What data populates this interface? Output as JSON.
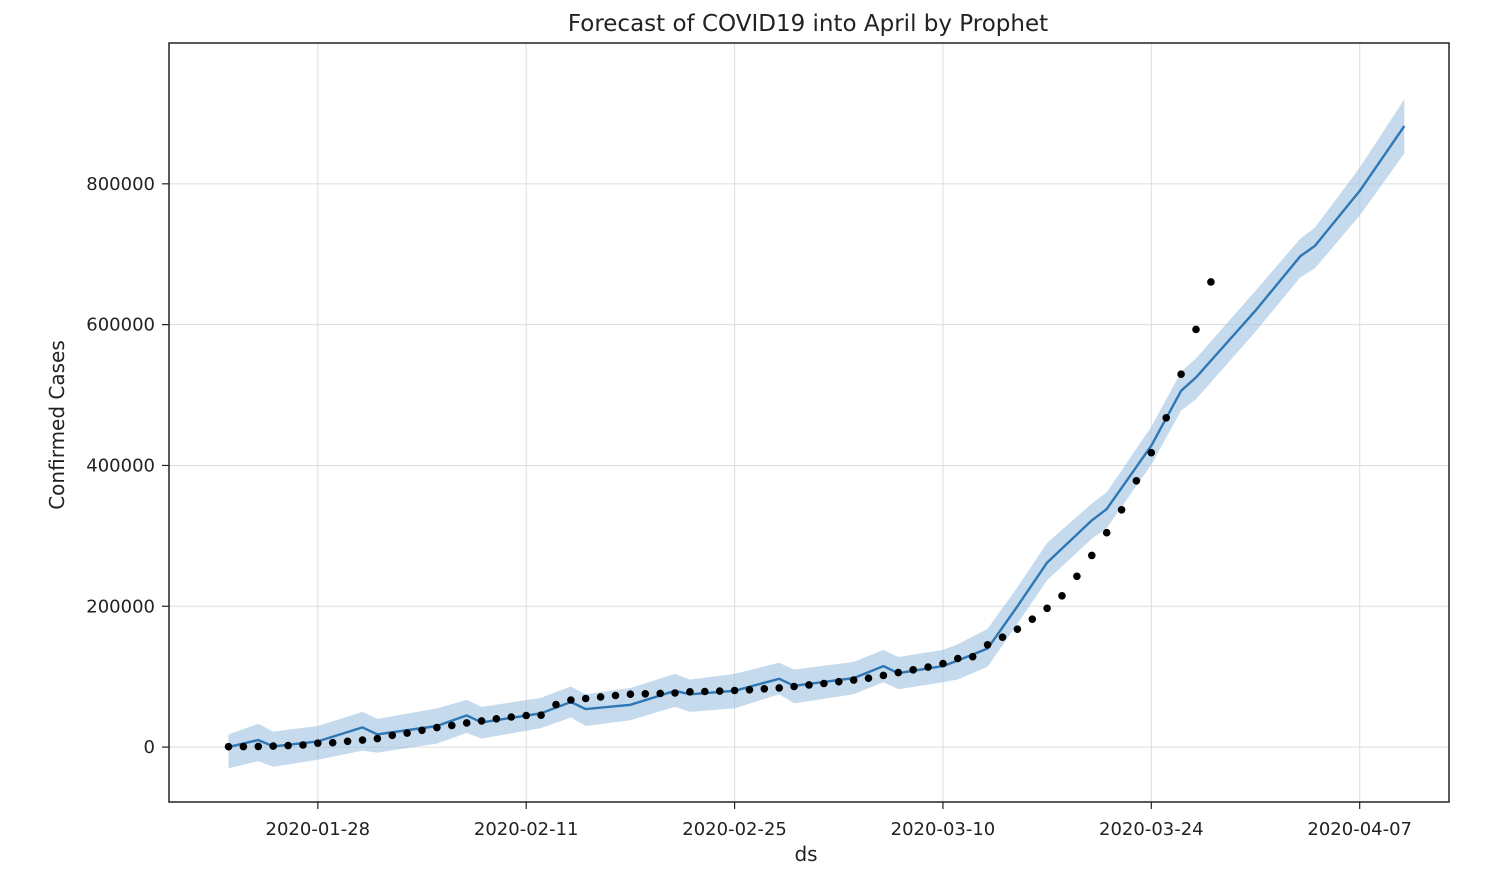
{
  "chart_data": {
    "type": "line",
    "title": "Forecast of COVID19 into April by Prophet",
    "xlabel": "ds",
    "ylabel": "Confirmed Cases",
    "x_ticks": [
      "2020-01-28",
      "2020-02-11",
      "2020-02-25",
      "2020-03-10",
      "2020-03-24",
      "2020-04-07"
    ],
    "y_ticks": [
      0,
      200000,
      400000,
      600000,
      800000
    ],
    "y_tick_labels": [
      "0",
      "200000",
      "400000",
      "600000",
      "800000"
    ],
    "xlim": [
      "2020-01-18",
      "2020-04-13"
    ],
    "ylim": [
      -78000,
      1000000
    ],
    "grid": true,
    "colors": {
      "forecast": "#2f76b5",
      "band": "#9fc3e1",
      "actual": "#000000",
      "grid": "#dddddd",
      "frame": "#222222"
    },
    "series": [
      {
        "kind": "points",
        "x": [
          "2020-01-22",
          "2020-01-23",
          "2020-01-24",
          "2020-01-25",
          "2020-01-26",
          "2020-01-27",
          "2020-01-28",
          "2020-01-29",
          "2020-01-30",
          "2020-01-31",
          "2020-02-01",
          "2020-02-02",
          "2020-02-03",
          "2020-02-04",
          "2020-02-05",
          "2020-02-06",
          "2020-02-07",
          "2020-02-08",
          "2020-02-09",
          "2020-02-10",
          "2020-02-11",
          "2020-02-12",
          "2020-02-13",
          "2020-02-14",
          "2020-02-15",
          "2020-02-16",
          "2020-02-17",
          "2020-02-18",
          "2020-02-19",
          "2020-02-20",
          "2020-02-21",
          "2020-02-22",
          "2020-02-23",
          "2020-02-24",
          "2020-02-25",
          "2020-02-26",
          "2020-02-27",
          "2020-02-28",
          "2020-02-29",
          "2020-03-01",
          "2020-03-02",
          "2020-03-03",
          "2020-03-04",
          "2020-03-05",
          "2020-03-06",
          "2020-03-07",
          "2020-03-08",
          "2020-03-09",
          "2020-03-10",
          "2020-03-11",
          "2020-03-12",
          "2020-03-13",
          "2020-03-14",
          "2020-03-15",
          "2020-03-16",
          "2020-03-17",
          "2020-03-18",
          "2020-03-19",
          "2020-03-20",
          "2020-03-21",
          "2020-03-22",
          "2020-03-23",
          "2020-03-24",
          "2020-03-25",
          "2020-03-26",
          "2020-03-27",
          "2020-03-28"
        ],
        "values": [
          555,
          653,
          941,
          1434,
          2118,
          2927,
          5578,
          6166,
          8234,
          9927,
          12038,
          16787,
          19881,
          23892,
          27635,
          30817,
          34391,
          37120,
          40150,
          42762,
          44802,
          45221,
          60368,
          66885,
          69030,
          71224,
          73258,
          75136,
          75639,
          76197,
          76823,
          78579,
          78965,
          79568,
          80413,
          81395,
          82754,
          84120,
          86011,
          88369,
          90306,
          92840,
          95120,
          97886,
          101801,
          105847,
          109821,
          113590,
          118620,
          125875,
          128352,
          145205,
          156101,
          167454,
          181574,
          197102,
          214821,
          242570,
          272208,
          304507,
          336953,
          378235,
          418045,
          467653,
          529591,
          593291,
          660706
        ]
      },
      {
        "kind": "line",
        "x": [
          "2020-01-22",
          "2020-01-24",
          "2020-01-25",
          "2020-01-28",
          "2020-01-31",
          "2020-02-01",
          "2020-02-05",
          "2020-02-07",
          "2020-02-08",
          "2020-02-12",
          "2020-02-14",
          "2020-02-15",
          "2020-02-18",
          "2020-02-21",
          "2020-02-22",
          "2020-02-25",
          "2020-02-28",
          "2020-02-29",
          "2020-03-04",
          "2020-03-06",
          "2020-03-07",
          "2020-03-10",
          "2020-03-11",
          "2020-03-13",
          "2020-03-15",
          "2020-03-17",
          "2020-03-20",
          "2020-03-21",
          "2020-03-24",
          "2020-03-26",
          "2020-03-27",
          "2020-03-31",
          "2020-04-03",
          "2020-04-04",
          "2020-04-07",
          "2020-04-10"
        ],
        "values": [
          0,
          10000,
          1000,
          8000,
          28000,
          18000,
          30000,
          45000,
          35000,
          48000,
          64000,
          54000,
          60000,
          80000,
          75000,
          80000,
          97000,
          87000,
          98000,
          115000,
          105000,
          115000,
          123000,
          140000,
          200000,
          262000,
          322000,
          338000,
          428000,
          506000,
          525000,
          620000,
          697000,
          712000,
          790000,
          882000
        ],
        "lower": [
          -30000,
          -20000,
          -28000,
          -18000,
          -5000,
          -8000,
          5000,
          20000,
          12000,
          27000,
          42000,
          30000,
          38000,
          57000,
          50000,
          55000,
          75000,
          62000,
          75000,
          92000,
          82000,
          92000,
          96000,
          114000,
          175000,
          237000,
          296000,
          311000,
          401000,
          478000,
          494000,
          590000,
          667000,
          680000,
          755000,
          843000
        ],
        "upper": [
          18000,
          33000,
          22000,
          30000,
          50000,
          40000,
          55000,
          67000,
          57000,
          70000,
          86000,
          75000,
          84000,
          104000,
          96000,
          104000,
          120000,
          110000,
          121000,
          138000,
          128000,
          138000,
          146000,
          168000,
          227000,
          290000,
          346000,
          362000,
          455000,
          533000,
          552000,
          648000,
          722000,
          738000,
          823000,
          920000
        ]
      }
    ]
  }
}
